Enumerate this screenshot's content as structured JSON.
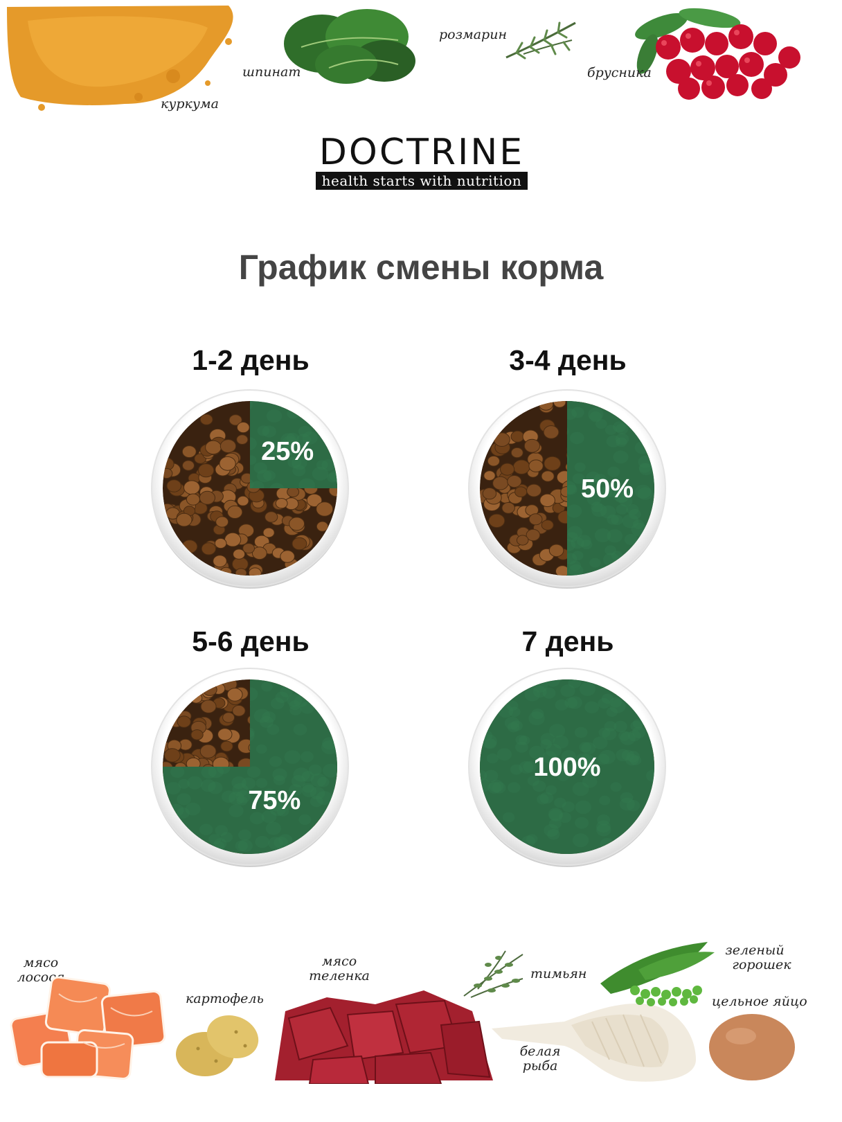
{
  "top_ingredients": [
    {
      "id": "turmeric",
      "label": "куркума"
    },
    {
      "id": "spinach",
      "label": "шпинат"
    },
    {
      "id": "rosemary",
      "label": "розмарин"
    },
    {
      "id": "cranberry",
      "label": "брусника"
    }
  ],
  "brand": {
    "name": "DOCTRINE",
    "tagline": "health starts with nutrition"
  },
  "title": "График смены корма",
  "schedule": [
    {
      "day": "1-2 день",
      "percent_label": "25%",
      "new_food_percent": 25
    },
    {
      "day": "3-4 день",
      "percent_label": "50%",
      "new_food_percent": 50
    },
    {
      "day": "5-6 день",
      "percent_label": "75%",
      "new_food_percent": 75
    },
    {
      "day": "7 день",
      "percent_label": "100%",
      "new_food_percent": 100
    }
  ],
  "colors": {
    "new_food": "#2d6b45",
    "old_food": "#7a4a22",
    "bowl_rim": "#f1f1f1",
    "title": "#444444"
  },
  "bottom_ingredients": [
    {
      "id": "salmon",
      "label_lines": [
        "мясо",
        "лосося"
      ]
    },
    {
      "id": "potato",
      "label_lines": [
        "картофель"
      ]
    },
    {
      "id": "veal",
      "label_lines": [
        "мясо",
        "теленка"
      ]
    },
    {
      "id": "thyme",
      "label_lines": [
        "тимьян"
      ]
    },
    {
      "id": "white-fish",
      "label_lines": [
        "белая",
        "рыба"
      ]
    },
    {
      "id": "peas",
      "label_lines": [
        "зеленый",
        "горошек"
      ]
    },
    {
      "id": "egg",
      "label_lines": [
        "цельное яйцо"
      ]
    }
  ]
}
